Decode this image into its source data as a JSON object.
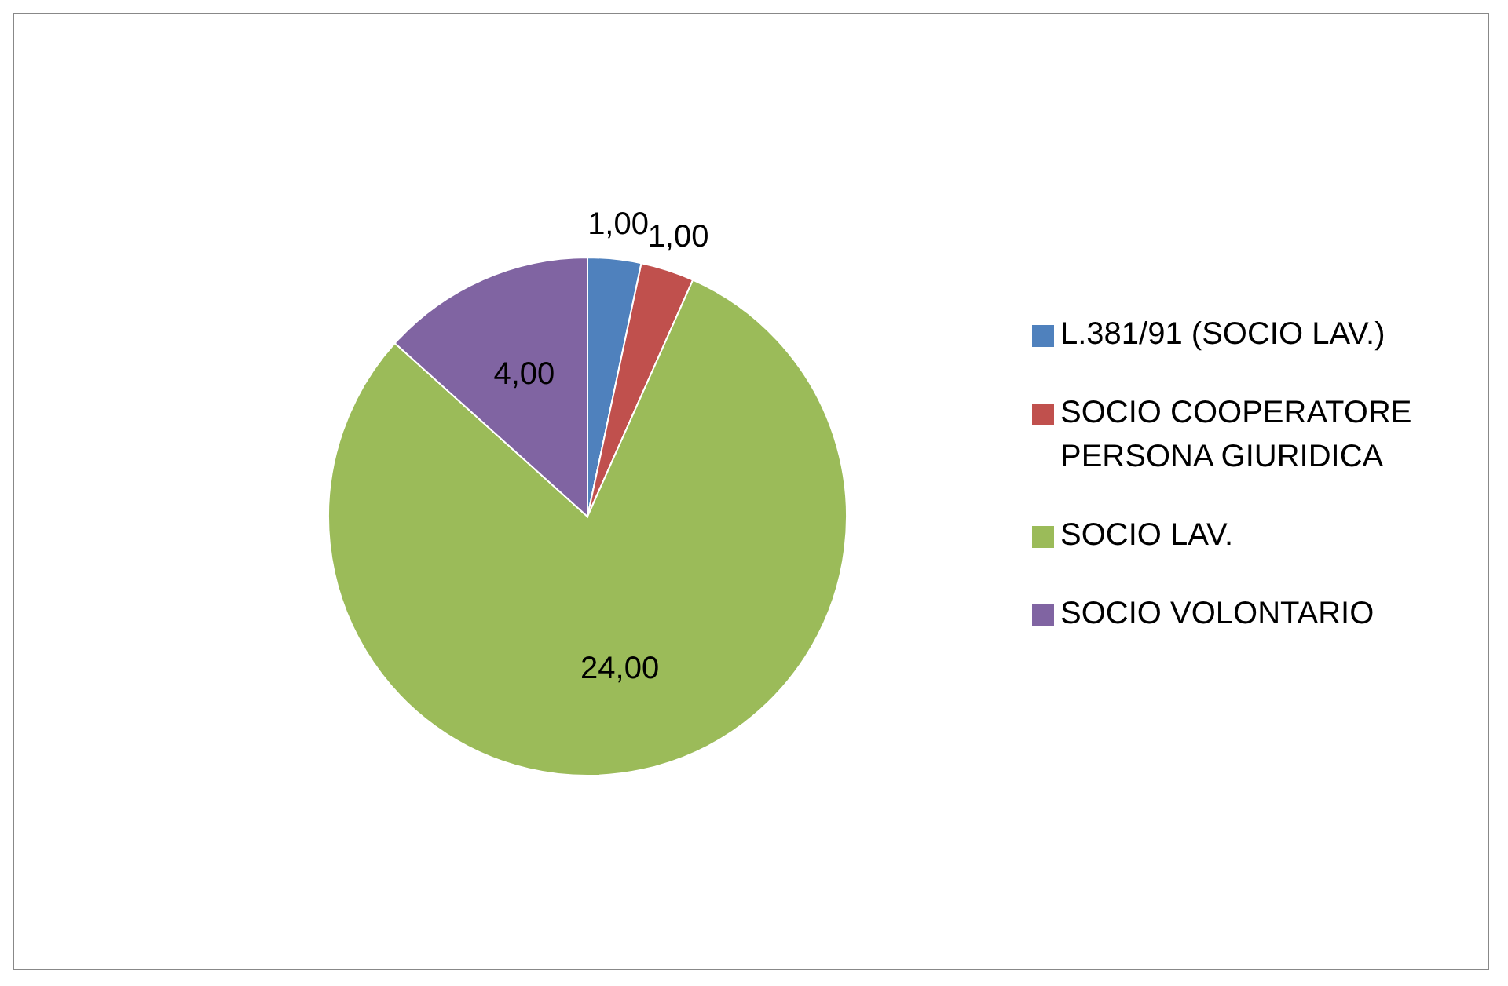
{
  "chart_data": {
    "type": "pie",
    "categories": [
      "L.381/91 (SOCIO LAV.)",
      "SOCIO COOPERATORE PERSONA GIURIDICA",
      "SOCIO LAV.",
      "SOCIO VOLONTARIO"
    ],
    "values": [
      1,
      1,
      24,
      4
    ],
    "colors": [
      "#4f81bd",
      "#c0504d",
      "#9bbb59",
      "#8064a2"
    ],
    "value_labels": [
      "1,00",
      "1,00",
      "24,00",
      "4,00"
    ],
    "legend": "right"
  }
}
